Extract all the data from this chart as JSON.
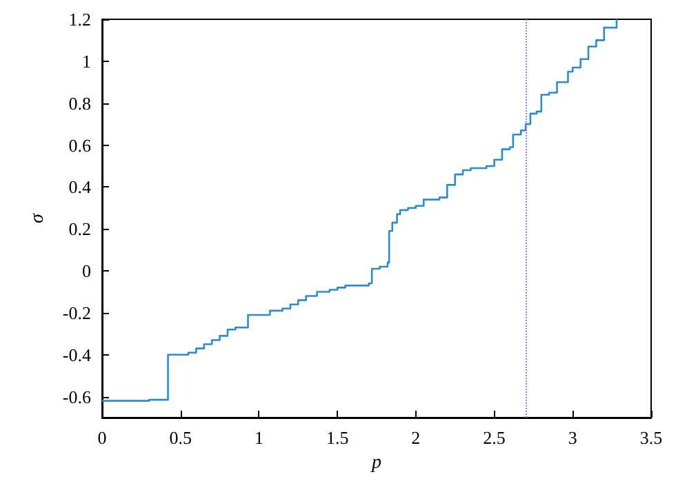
{
  "chart_data": {
    "type": "step",
    "xlabel": "p",
    "ylabel": "σ",
    "x": [
      0,
      0.3,
      0.42,
      0.5,
      0.55,
      0.6,
      0.65,
      0.7,
      0.75,
      0.8,
      0.85,
      0.93,
      1.05,
      1.07,
      1.15,
      1.2,
      1.25,
      1.3,
      1.37,
      1.45,
      1.5,
      1.55,
      1.7,
      1.72,
      1.77,
      1.82,
      1.83,
      1.85,
      1.88,
      1.9,
      1.95,
      2.0,
      2.05,
      2.15,
      2.2,
      2.25,
      2.3,
      2.35,
      2.45,
      2.5,
      2.55,
      2.6,
      2.62,
      2.67,
      2.7,
      2.73,
      2.77,
      2.8,
      2.85,
      2.9,
      2.97,
      3.0,
      3.05,
      3.1,
      3.15,
      3.2,
      3.28
    ],
    "series": [
      {
        "color": "#2a8ccf",
        "values": [
          -0.62,
          -0.615,
          -0.4,
          -0.4,
          -0.39,
          -0.37,
          -0.35,
          -0.33,
          -0.31,
          -0.28,
          -0.27,
          -0.21,
          -0.21,
          -0.19,
          -0.18,
          -0.16,
          -0.14,
          -0.12,
          -0.1,
          -0.09,
          -0.08,
          -0.07,
          -0.06,
          0.01,
          0.02,
          0.04,
          0.19,
          0.23,
          0.27,
          0.29,
          0.3,
          0.31,
          0.34,
          0.35,
          0.41,
          0.46,
          0.48,
          0.49,
          0.5,
          0.53,
          0.58,
          0.59,
          0.65,
          0.67,
          0.7,
          0.75,
          0.76,
          0.84,
          0.85,
          0.9,
          0.95,
          0.97,
          1.01,
          1.07,
          1.1,
          1.16,
          1.2
        ]
      }
    ],
    "xlim": [
      0,
      3.5
    ],
    "xticks": [
      0,
      0.5,
      1,
      1.5,
      2,
      2.5,
      3,
      3.5
    ],
    "ylim": [
      -0.7,
      1.2
    ],
    "yticks": [
      -0.6,
      -0.4,
      -0.2,
      0,
      0.2,
      0.4,
      0.6,
      0.8,
      1,
      1.2
    ],
    "ref_lines": [
      {
        "axis": "x",
        "value": 2.7,
        "color": "#8080ff",
        "line_style": "dotted"
      }
    ],
    "grid": false,
    "marker": "none",
    "line_style": "solid"
  }
}
